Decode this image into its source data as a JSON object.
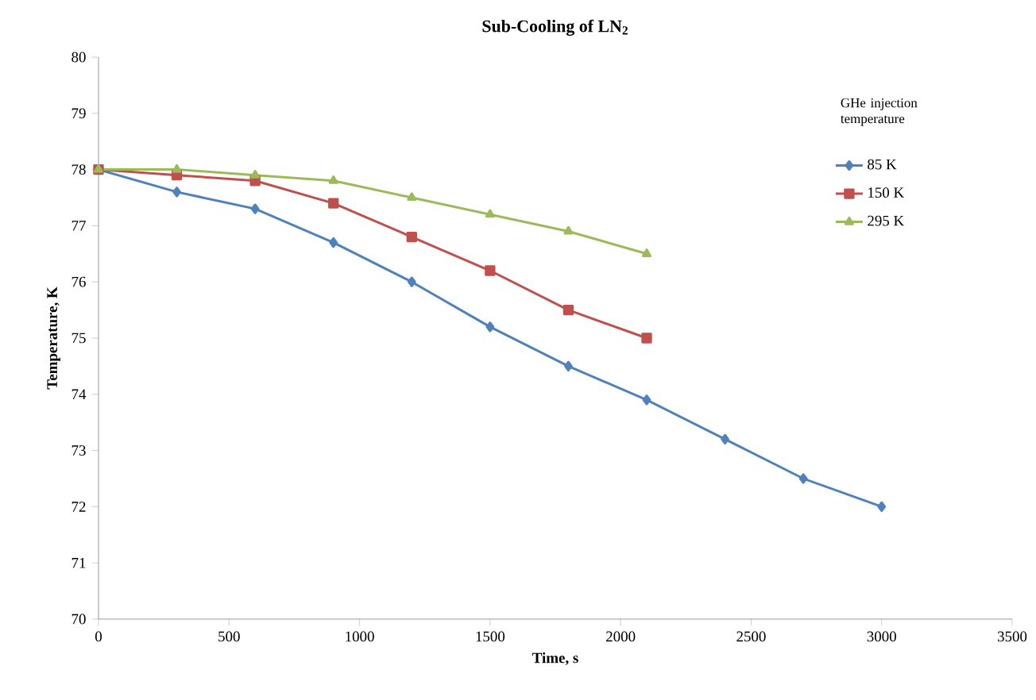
{
  "chart_data": {
    "type": "line",
    "title": "Sub-Cooling of LN$_{2}$",
    "xlabel": "Time, s",
    "ylabel": "Temperature, K",
    "legend_title": "GHe injection temperature",
    "x": [
      0,
      300,
      600,
      900,
      1200,
      1500,
      1800,
      2100,
      2400,
      2700,
      3000
    ],
    "series": [
      {
        "name": "85 K",
        "color": "#4f81bd",
        "marker": "diamond",
        "values": [
          78.0,
          77.6,
          77.3,
          76.7,
          76.0,
          75.2,
          74.5,
          73.9,
          73.2,
          72.5,
          72.0
        ]
      },
      {
        "name": "150 K",
        "color": "#c0504d",
        "marker": "square",
        "values": [
          78.0,
          77.9,
          77.8,
          77.4,
          76.8,
          76.2,
          75.5,
          75.0,
          null,
          null,
          null
        ]
      },
      {
        "name": "295 K",
        "color": "#9bbb59",
        "marker": "triangle",
        "values": [
          78.0,
          78.0,
          77.9,
          77.8,
          77.5,
          77.2,
          76.9,
          76.5,
          null,
          null,
          null
        ]
      }
    ],
    "xlim": [
      0,
      3500
    ],
    "xticks": [
      0,
      500,
      1000,
      1500,
      2000,
      2500,
      3000,
      3500
    ],
    "ylim": [
      70,
      80
    ],
    "yticks": [
      70,
      71,
      72,
      73,
      74,
      75,
      76,
      77,
      78,
      79,
      80
    ],
    "grid": false,
    "legend": "top right",
    "line_style": "solid"
  }
}
